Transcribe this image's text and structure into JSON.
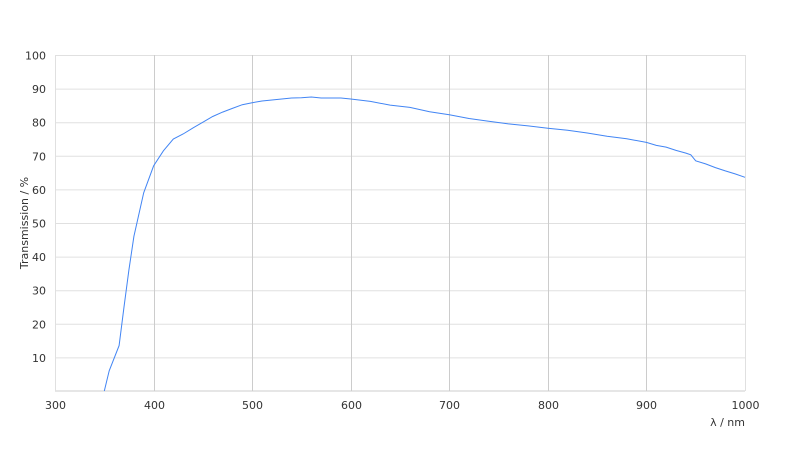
{
  "chart_data": {
    "type": "line",
    "title": "",
    "xlabel": "λ / nm",
    "ylabel": "Transmission / %",
    "xlim": [
      300,
      1000
    ],
    "ylim": [
      0,
      100
    ],
    "x_ticks": [
      300,
      400,
      500,
      600,
      700,
      800,
      900,
      1000
    ],
    "y_ticks": [
      10,
      20,
      30,
      40,
      50,
      60,
      70,
      80,
      90,
      100
    ],
    "grid": true,
    "line_color": "#4285f4",
    "series": [
      {
        "x": [
          350,
          355,
          365,
          370,
          375,
          380,
          390,
          400,
          410,
          420,
          430,
          440,
          450,
          460,
          470,
          480,
          490,
          500,
          510,
          520,
          530,
          540,
          550,
          560,
          570,
          580,
          590,
          600,
          620,
          640,
          660,
          680,
          700,
          720,
          740,
          760,
          780,
          800,
          820,
          840,
          860,
          880,
          900,
          910,
          920,
          930,
          940,
          945,
          950,
          960,
          970,
          980,
          990,
          1000
        ],
        "y": [
          0,
          6,
          13.5,
          25,
          36,
          46,
          59,
          67,
          71.5,
          75,
          76.5,
          78.3,
          80,
          81.7,
          83,
          84.1,
          85.2,
          85.8,
          86.3,
          86.6,
          86.9,
          87.2,
          87.3,
          87.5,
          87.2,
          87.2,
          87.2,
          86.9,
          86.2,
          85.1,
          84.4,
          83.1,
          82.2,
          81.1,
          80.3,
          79.5,
          78.9,
          78.2,
          77.6,
          76.8,
          75.8,
          75.1,
          74,
          73.1,
          72.6,
          71.6,
          70.8,
          70.3,
          68.5,
          67.6,
          66.5,
          65.5,
          64.6,
          63.6
        ]
      }
    ]
  }
}
